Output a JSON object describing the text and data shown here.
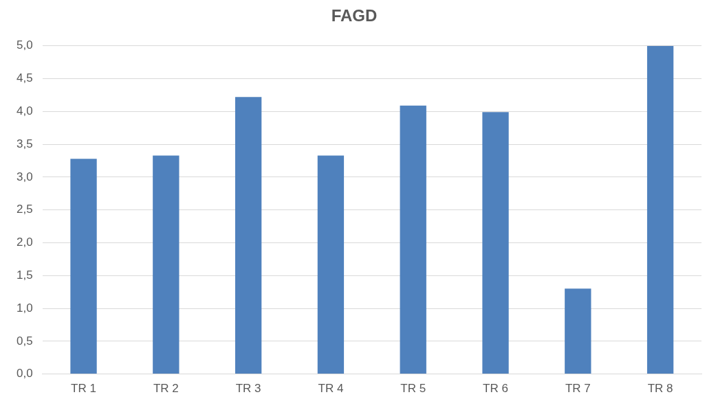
{
  "chart_data": {
    "type": "bar",
    "title": "FAGD",
    "categories": [
      "TR 1",
      "TR 2",
      "TR 3",
      "TR 4",
      "TR 5",
      "TR 6",
      "TR 7",
      "TR 8"
    ],
    "values": [
      3.28,
      3.33,
      4.22,
      3.33,
      4.09,
      3.99,
      1.3,
      5.0
    ],
    "color": "#4f81bd",
    "ylim": [
      0,
      5
    ],
    "yticks": [
      {
        "value": 0,
        "label": "0,0"
      },
      {
        "value": 0.5,
        "label": "0,5"
      },
      {
        "value": 1,
        "label": "1,0"
      },
      {
        "value": 1.5,
        "label": "1,5"
      },
      {
        "value": 2,
        "label": "2,0"
      },
      {
        "value": 2.5,
        "label": "2,5"
      },
      {
        "value": 3,
        "label": "3,0"
      },
      {
        "value": 3.5,
        "label": "3,5"
      },
      {
        "value": 4,
        "label": "4,0"
      },
      {
        "value": 4.5,
        "label": "4,5"
      },
      {
        "value": 5,
        "label": "5,0"
      }
    ],
    "grid": "y"
  }
}
